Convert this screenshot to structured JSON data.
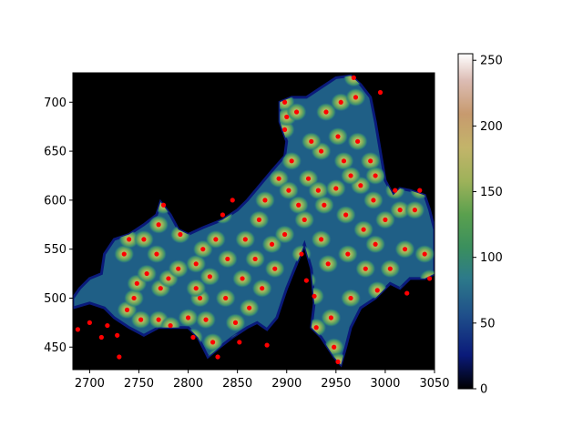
{
  "chart_data": {
    "type": "heatmap",
    "title": "",
    "xlabel": "",
    "ylabel": "",
    "xlim": [
      2683,
      3050
    ],
    "ylim": [
      427,
      730
    ],
    "x_ticks": [
      "2700",
      "2750",
      "2800",
      "2850",
      "2900",
      "2950",
      "3000",
      "3050"
    ],
    "x_tick_values": [
      2700,
      2750,
      2800,
      2850,
      2900,
      2950,
      3000,
      3050
    ],
    "y_ticks": [
      "450",
      "500",
      "550",
      "600",
      "650",
      "700"
    ],
    "y_tick_values": [
      450,
      500,
      550,
      600,
      650,
      700
    ],
    "background_color": "#000000",
    "marker_color": "#ff0000",
    "colorbar": {
      "colormap": "gist_earth",
      "range": [
        0,
        255
      ],
      "ticks": [
        "0",
        "50",
        "100",
        "150",
        "200",
        "250"
      ],
      "tick_values": [
        0,
        50,
        100,
        150,
        200,
        250
      ]
    },
    "region_outline": [
      [
        2683,
        490
      ],
      [
        2700,
        495
      ],
      [
        2715,
        490
      ],
      [
        2725,
        480
      ],
      [
        2740,
        470
      ],
      [
        2755,
        462
      ],
      [
        2770,
        470
      ],
      [
        2785,
        470
      ],
      [
        2800,
        470
      ],
      [
        2810,
        460
      ],
      [
        2820,
        440
      ],
      [
        2832,
        450
      ],
      [
        2845,
        460
      ],
      [
        2860,
        470
      ],
      [
        2870,
        475
      ],
      [
        2880,
        468
      ],
      [
        2890,
        480
      ],
      [
        2900,
        510
      ],
      [
        2910,
        535
      ],
      [
        2918,
        555
      ],
      [
        2925,
        530
      ],
      [
        2928,
        495
      ],
      [
        2925,
        470
      ],
      [
        2935,
        460
      ],
      [
        2948,
        440
      ],
      [
        2955,
        432
      ],
      [
        2960,
        450
      ],
      [
        2965,
        470
      ],
      [
        2975,
        490
      ],
      [
        2990,
        500
      ],
      [
        3005,
        515
      ],
      [
        3015,
        510
      ],
      [
        3025,
        520
      ],
      [
        3040,
        520
      ],
      [
        3050,
        525
      ],
      [
        3050,
        570
      ],
      [
        3045,
        590
      ],
      [
        3040,
        605
      ],
      [
        3025,
        610
      ],
      [
        3015,
        612
      ],
      [
        3008,
        605
      ],
      [
        3000,
        620
      ],
      [
        2995,
        650
      ],
      [
        2990,
        680
      ],
      [
        2985,
        705
      ],
      [
        2975,
        718
      ],
      [
        2965,
        727
      ],
      [
        2950,
        725
      ],
      [
        2935,
        715
      ],
      [
        2920,
        705
      ],
      [
        2905,
        705
      ],
      [
        2893,
        700
      ],
      [
        2893,
        680
      ],
      [
        2900,
        660
      ],
      [
        2898,
        645
      ],
      [
        2885,
        630
      ],
      [
        2870,
        612
      ],
      [
        2860,
        600
      ],
      [
        2850,
        590
      ],
      [
        2835,
        580
      ],
      [
        2815,
        572
      ],
      [
        2800,
        565
      ],
      [
        2790,
        570
      ],
      [
        2782,
        585
      ],
      [
        2772,
        598
      ],
      [
        2768,
        585
      ],
      [
        2755,
        575
      ],
      [
        2740,
        565
      ],
      [
        2725,
        560
      ],
      [
        2715,
        545
      ],
      [
        2712,
        525
      ],
      [
        2700,
        520
      ],
      [
        2690,
        510
      ],
      [
        2683,
        500
      ]
    ],
    "points": [
      {
        "x": 2688,
        "y": 468
      },
      {
        "x": 2700,
        "y": 475
      },
      {
        "x": 2712,
        "y": 460
      },
      {
        "x": 2718,
        "y": 472
      },
      {
        "x": 2728,
        "y": 462
      },
      {
        "x": 2730,
        "y": 440
      },
      {
        "x": 2738,
        "y": 488
      },
      {
        "x": 2745,
        "y": 500
      },
      {
        "x": 2752,
        "y": 478
      },
      {
        "x": 2748,
        "y": 515
      },
      {
        "x": 2758,
        "y": 525
      },
      {
        "x": 2735,
        "y": 545
      },
      {
        "x": 2740,
        "y": 560
      },
      {
        "x": 2755,
        "y": 560
      },
      {
        "x": 2770,
        "y": 575
      },
      {
        "x": 2775,
        "y": 595
      },
      {
        "x": 2768,
        "y": 545
      },
      {
        "x": 2772,
        "y": 510
      },
      {
        "x": 2770,
        "y": 478
      },
      {
        "x": 2782,
        "y": 472
      },
      {
        "x": 2780,
        "y": 520
      },
      {
        "x": 2792,
        "y": 565
      },
      {
        "x": 2790,
        "y": 530
      },
      {
        "x": 2800,
        "y": 480
      },
      {
        "x": 2805,
        "y": 460
      },
      {
        "x": 2812,
        "y": 500
      },
      {
        "x": 2808,
        "y": 535
      },
      {
        "x": 2815,
        "y": 550
      },
      {
        "x": 2818,
        "y": 478
      },
      {
        "x": 2825,
        "y": 455
      },
      {
        "x": 2830,
        "y": 440
      },
      {
        "x": 2822,
        "y": 522
      },
      {
        "x": 2828,
        "y": 560
      },
      {
        "x": 2835,
        "y": 585
      },
      {
        "x": 2840,
        "y": 540
      },
      {
        "x": 2838,
        "y": 500
      },
      {
        "x": 2848,
        "y": 475
      },
      {
        "x": 2852,
        "y": 455
      },
      {
        "x": 2855,
        "y": 520
      },
      {
        "x": 2858,
        "y": 560
      },
      {
        "x": 2862,
        "y": 490
      },
      {
        "x": 2868,
        "y": 540
      },
      {
        "x": 2872,
        "y": 580
      },
      {
        "x": 2875,
        "y": 510
      },
      {
        "x": 2880,
        "y": 452
      },
      {
        "x": 2878,
        "y": 600
      },
      {
        "x": 2885,
        "y": 555
      },
      {
        "x": 2888,
        "y": 530
      },
      {
        "x": 2892,
        "y": 622
      },
      {
        "x": 2898,
        "y": 700
      },
      {
        "x": 2898,
        "y": 672
      },
      {
        "x": 2900,
        "y": 685
      },
      {
        "x": 2905,
        "y": 640
      },
      {
        "x": 2910,
        "y": 690
      },
      {
        "x": 2902,
        "y": 610
      },
      {
        "x": 2912,
        "y": 595
      },
      {
        "x": 2915,
        "y": 545
      },
      {
        "x": 2920,
        "y": 518
      },
      {
        "x": 2922,
        "y": 622
      },
      {
        "x": 2928,
        "y": 502
      },
      {
        "x": 2930,
        "y": 470
      },
      {
        "x": 2935,
        "y": 560
      },
      {
        "x": 2932,
        "y": 610
      },
      {
        "x": 2935,
        "y": 650
      },
      {
        "x": 2938,
        "y": 595
      },
      {
        "x": 2942,
        "y": 535
      },
      {
        "x": 2945,
        "y": 480
      },
      {
        "x": 2948,
        "y": 450
      },
      {
        "x": 2952,
        "y": 435
      },
      {
        "x": 2950,
        "y": 612
      },
      {
        "x": 2952,
        "y": 665
      },
      {
        "x": 2955,
        "y": 700
      },
      {
        "x": 2958,
        "y": 640
      },
      {
        "x": 2960,
        "y": 585
      },
      {
        "x": 2962,
        "y": 545
      },
      {
        "x": 2965,
        "y": 500
      },
      {
        "x": 2968,
        "y": 725
      },
      {
        "x": 2970,
        "y": 705
      },
      {
        "x": 2972,
        "y": 660
      },
      {
        "x": 2975,
        "y": 615
      },
      {
        "x": 2978,
        "y": 570
      },
      {
        "x": 2980,
        "y": 530
      },
      {
        "x": 2985,
        "y": 640
      },
      {
        "x": 2988,
        "y": 600
      },
      {
        "x": 2990,
        "y": 555
      },
      {
        "x": 2992,
        "y": 508
      },
      {
        "x": 2995,
        "y": 710
      },
      {
        "x": 3000,
        "y": 580
      },
      {
        "x": 3005,
        "y": 530
      },
      {
        "x": 3010,
        "y": 610
      },
      {
        "x": 3015,
        "y": 590
      },
      {
        "x": 3020,
        "y": 550
      },
      {
        "x": 3022,
        "y": 505
      },
      {
        "x": 3030,
        "y": 590
      },
      {
        "x": 3035,
        "y": 610
      },
      {
        "x": 3040,
        "y": 545
      },
      {
        "x": 3045,
        "y": 520
      },
      {
        "x": 2990,
        "y": 625
      },
      {
        "x": 2965,
        "y": 625
      },
      {
        "x": 2940,
        "y": 690
      },
      {
        "x": 2925,
        "y": 660
      },
      {
        "x": 2918,
        "y": 580
      },
      {
        "x": 2898,
        "y": 565
      },
      {
        "x": 2845,
        "y": 600
      },
      {
        "x": 2808,
        "y": 510
      }
    ]
  }
}
